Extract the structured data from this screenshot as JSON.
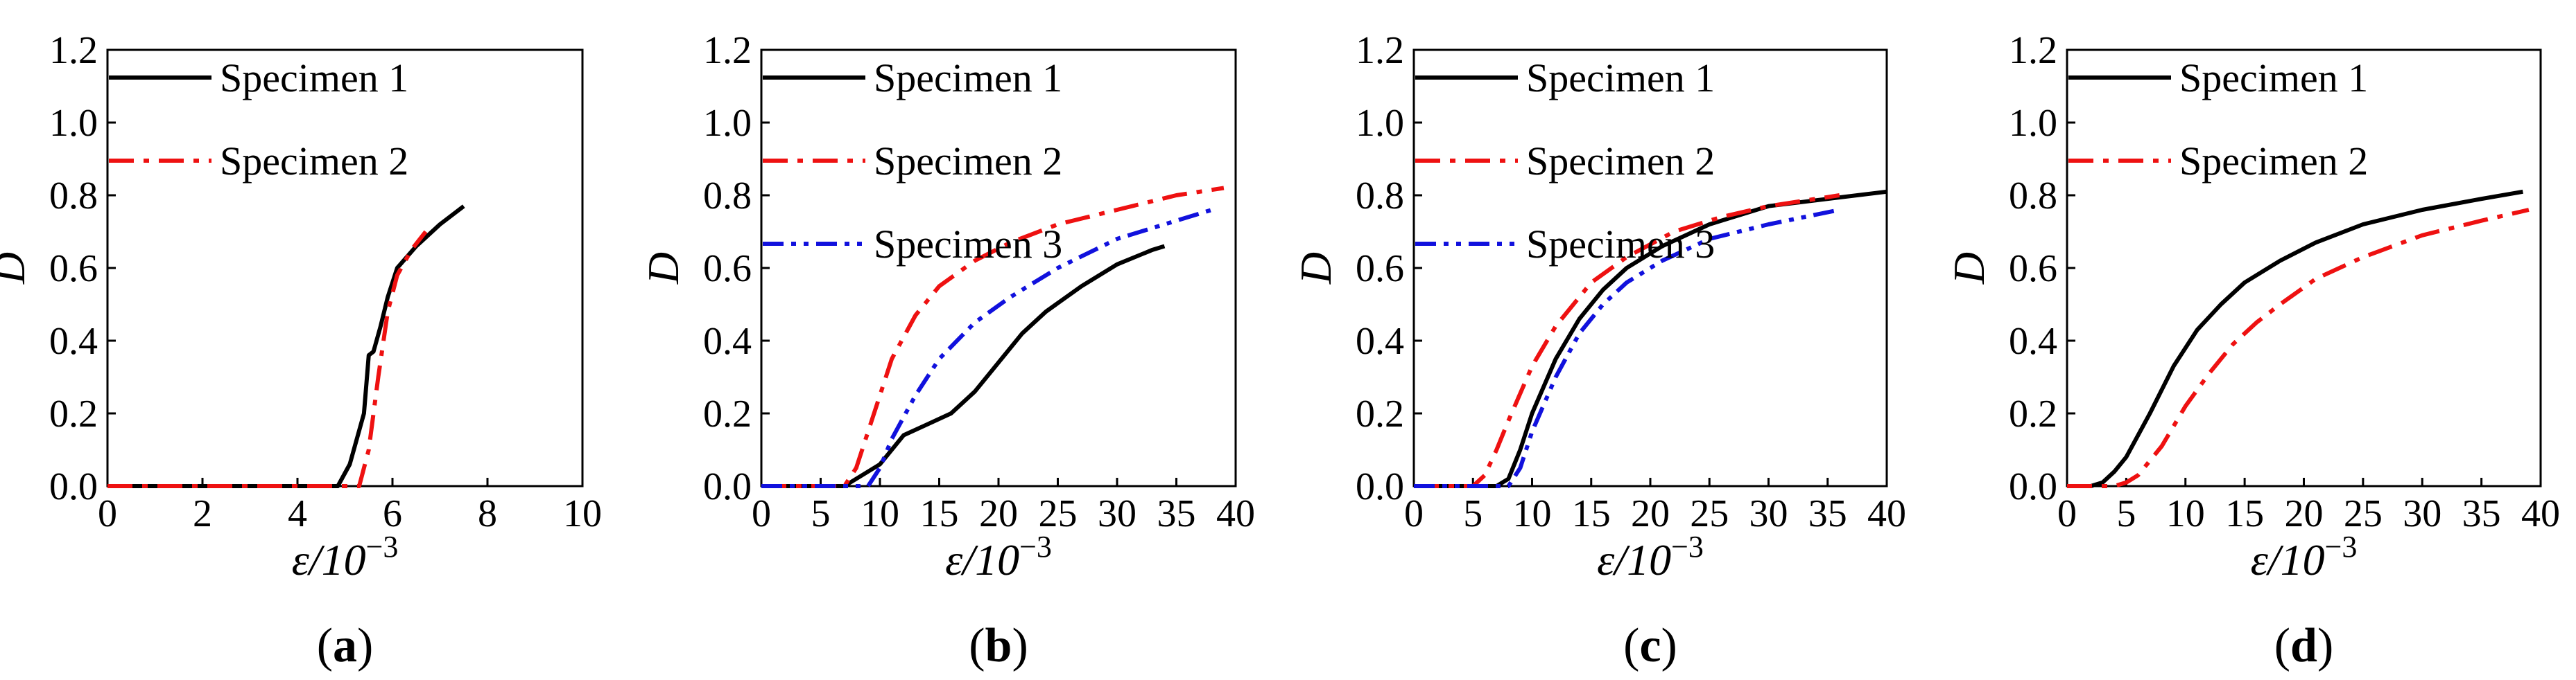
{
  "figure": {
    "panels": [
      "a",
      "b",
      "c",
      "d"
    ]
  },
  "colors": {
    "specimen_1": "#000000",
    "specimen_2": "#ee1111",
    "specimen_3": "#1111dd"
  },
  "chart_data": [
    {
      "type": "line",
      "panel_label": "(a)",
      "xlabel": "ε/10−3",
      "ylabel": "D",
      "xlim": [
        0,
        10
      ],
      "ylim": [
        0,
        1.2
      ],
      "xticks": [
        0,
        2,
        4,
        6,
        8,
        10
      ],
      "yticks": [
        0.0,
        0.2,
        0.4,
        0.6,
        0.8,
        1.0,
        1.2
      ],
      "xtick_labels": [
        "0",
        "2",
        "4",
        "6",
        "8",
        "10"
      ],
      "ytick_labels": [
        "0.0",
        "0.2",
        "0.4",
        "0.6",
        "0.8",
        "1.0",
        "1.2"
      ],
      "legend_position": "top-left",
      "series": [
        {
          "name": "Specimen 1",
          "style": "solid",
          "color": "#000000",
          "points": [
            [
              0,
              0
            ],
            [
              4.85,
              0
            ],
            [
              5.1,
              0.06
            ],
            [
              5.4,
              0.2
            ],
            [
              5.5,
              0.36
            ],
            [
              5.6,
              0.37
            ],
            [
              5.75,
              0.44
            ],
            [
              5.9,
              0.52
            ],
            [
              6.1,
              0.6
            ],
            [
              6.5,
              0.66
            ],
            [
              7.0,
              0.72
            ],
            [
              7.5,
              0.77
            ]
          ]
        },
        {
          "name": "Specimen 2",
          "style": "dashdot",
          "color": "#ee1111",
          "points": [
            [
              0,
              0
            ],
            [
              5.3,
              0
            ],
            [
              5.5,
              0.1
            ],
            [
              5.7,
              0.3
            ],
            [
              5.9,
              0.48
            ],
            [
              6.1,
              0.58
            ],
            [
              6.4,
              0.65
            ],
            [
              6.7,
              0.7
            ]
          ]
        }
      ]
    },
    {
      "type": "line",
      "panel_label": "(b)",
      "xlabel": "ε/10−3",
      "ylabel": "D",
      "xlim": [
        0,
        40
      ],
      "ylim": [
        0,
        1.2
      ],
      "xticks": [
        0,
        5,
        10,
        15,
        20,
        25,
        30,
        35,
        40
      ],
      "yticks": [
        0.0,
        0.2,
        0.4,
        0.6,
        0.8,
        1.0,
        1.2
      ],
      "xtick_labels": [
        "0",
        "5",
        "10",
        "15",
        "20",
        "25",
        "30",
        "35",
        "40"
      ],
      "ytick_labels": [
        "0.0",
        "0.2",
        "0.4",
        "0.6",
        "0.8",
        "1.0",
        "1.2"
      ],
      "legend_position": "top-left",
      "series": [
        {
          "name": "Specimen 1",
          "style": "solid",
          "color": "#000000",
          "points": [
            [
              0,
              0
            ],
            [
              7,
              0
            ],
            [
              8,
              0.02
            ],
            [
              10,
              0.06
            ],
            [
              12,
              0.14
            ],
            [
              14,
              0.17
            ],
            [
              16,
              0.2
            ],
            [
              18,
              0.26
            ],
            [
              20,
              0.34
            ],
            [
              22,
              0.42
            ],
            [
              24,
              0.48
            ],
            [
              27,
              0.55
            ],
            [
              30,
              0.61
            ],
            [
              33,
              0.65
            ],
            [
              34,
              0.66
            ]
          ]
        },
        {
          "name": "Specimen 2",
          "style": "dashdot",
          "color": "#ee1111",
          "points": [
            [
              0,
              0
            ],
            [
              7,
              0
            ],
            [
              8,
              0.05
            ],
            [
              9.5,
              0.2
            ],
            [
              11,
              0.35
            ],
            [
              13,
              0.47
            ],
            [
              15,
              0.55
            ],
            [
              18,
              0.62
            ],
            [
              21,
              0.67
            ],
            [
              25,
              0.72
            ],
            [
              30,
              0.76
            ],
            [
              35,
              0.8
            ],
            [
              39,
              0.82
            ]
          ]
        },
        {
          "name": "Specimen 3",
          "style": "dashdotdot",
          "color": "#1111dd",
          "points": [
            [
              0,
              0
            ],
            [
              9,
              0
            ],
            [
              10,
              0.05
            ],
            [
              11,
              0.13
            ],
            [
              13,
              0.25
            ],
            [
              15,
              0.35
            ],
            [
              18,
              0.45
            ],
            [
              21,
              0.52
            ],
            [
              25,
              0.6
            ],
            [
              30,
              0.68
            ],
            [
              35,
              0.73
            ],
            [
              38,
              0.76
            ]
          ]
        }
      ]
    },
    {
      "type": "line",
      "panel_label": "(c)",
      "xlabel": "ε/10−3",
      "ylabel": "D",
      "xlim": [
        0,
        40
      ],
      "ylim": [
        0,
        1.2
      ],
      "xticks": [
        0,
        5,
        10,
        15,
        20,
        25,
        30,
        35,
        40
      ],
      "yticks": [
        0.0,
        0.2,
        0.4,
        0.6,
        0.8,
        1.0,
        1.2
      ],
      "xtick_labels": [
        "0",
        "5",
        "10",
        "15",
        "20",
        "25",
        "30",
        "35",
        "40"
      ],
      "ytick_labels": [
        "0.0",
        "0.2",
        "0.4",
        "0.6",
        "0.8",
        "1.0",
        "1.2"
      ],
      "legend_position": "top-left",
      "series": [
        {
          "name": "Specimen 1",
          "style": "solid",
          "color": "#000000",
          "points": [
            [
              0,
              0
            ],
            [
              7,
              0
            ],
            [
              8,
              0.02
            ],
            [
              9,
              0.1
            ],
            [
              10,
              0.2
            ],
            [
              12,
              0.35
            ],
            [
              14,
              0.46
            ],
            [
              16,
              0.54
            ],
            [
              18,
              0.6
            ],
            [
              21,
              0.66
            ],
            [
              25,
              0.72
            ],
            [
              30,
              0.77
            ],
            [
              35,
              0.79
            ],
            [
              40,
              0.81
            ]
          ]
        },
        {
          "name": "Specimen 2",
          "style": "dashdot",
          "color": "#ee1111",
          "points": [
            [
              0,
              0
            ],
            [
              5,
              0
            ],
            [
              6,
              0.03
            ],
            [
              7,
              0.1
            ],
            [
              8,
              0.18
            ],
            [
              10,
              0.33
            ],
            [
              12,
              0.44
            ],
            [
              15,
              0.56
            ],
            [
              18,
              0.63
            ],
            [
              22,
              0.7
            ],
            [
              26,
              0.74
            ],
            [
              30,
              0.77
            ],
            [
              36,
              0.8
            ]
          ]
        },
        {
          "name": "Specimen 3",
          "style": "dashdotdot",
          "color": "#1111dd",
          "points": [
            [
              0,
              0
            ],
            [
              8,
              0
            ],
            [
              9,
              0.05
            ],
            [
              10,
              0.15
            ],
            [
              12,
              0.3
            ],
            [
              14,
              0.42
            ],
            [
              16,
              0.5
            ],
            [
              18,
              0.56
            ],
            [
              21,
              0.62
            ],
            [
              25,
              0.68
            ],
            [
              30,
              0.72
            ],
            [
              36,
              0.76
            ]
          ]
        }
      ]
    },
    {
      "type": "line",
      "panel_label": "(d)",
      "xlabel": "ε/10−3",
      "ylabel": "D",
      "xlim": [
        0,
        40
      ],
      "ylim": [
        0,
        1.2
      ],
      "xticks": [
        0,
        5,
        10,
        15,
        20,
        25,
        30,
        35,
        40
      ],
      "yticks": [
        0.0,
        0.2,
        0.4,
        0.6,
        0.8,
        1.0,
        1.2
      ],
      "xtick_labels": [
        "0",
        "5",
        "10",
        "15",
        "20",
        "25",
        "30",
        "35",
        "40"
      ],
      "ytick_labels": [
        "0.0",
        "0.2",
        "0.4",
        "0.6",
        "0.8",
        "1.0",
        "1.2"
      ],
      "legend_position": "top-left",
      "series": [
        {
          "name": "Specimen 1",
          "style": "solid",
          "color": "#000000",
          "points": [
            [
              0,
              0
            ],
            [
              2,
              0
            ],
            [
              3,
              0.01
            ],
            [
              4,
              0.04
            ],
            [
              5,
              0.08
            ],
            [
              7,
              0.2
            ],
            [
              9,
              0.33
            ],
            [
              11,
              0.43
            ],
            [
              13,
              0.5
            ],
            [
              15,
              0.56
            ],
            [
              18,
              0.62
            ],
            [
              21,
              0.67
            ],
            [
              25,
              0.72
            ],
            [
              30,
              0.76
            ],
            [
              35,
              0.79
            ],
            [
              38.5,
              0.81
            ]
          ]
        },
        {
          "name": "Specimen 2",
          "style": "dashdot",
          "color": "#ee1111",
          "points": [
            [
              0,
              0
            ],
            [
              4,
              0
            ],
            [
              5,
              0.01
            ],
            [
              6,
              0.03
            ],
            [
              8,
              0.11
            ],
            [
              10,
              0.22
            ],
            [
              12,
              0.31
            ],
            [
              14,
              0.39
            ],
            [
              16,
              0.45
            ],
            [
              18,
              0.5
            ],
            [
              21,
              0.57
            ],
            [
              25,
              0.63
            ],
            [
              30,
              0.69
            ],
            [
              35,
              0.73
            ],
            [
              39,
              0.76
            ]
          ]
        }
      ]
    }
  ]
}
